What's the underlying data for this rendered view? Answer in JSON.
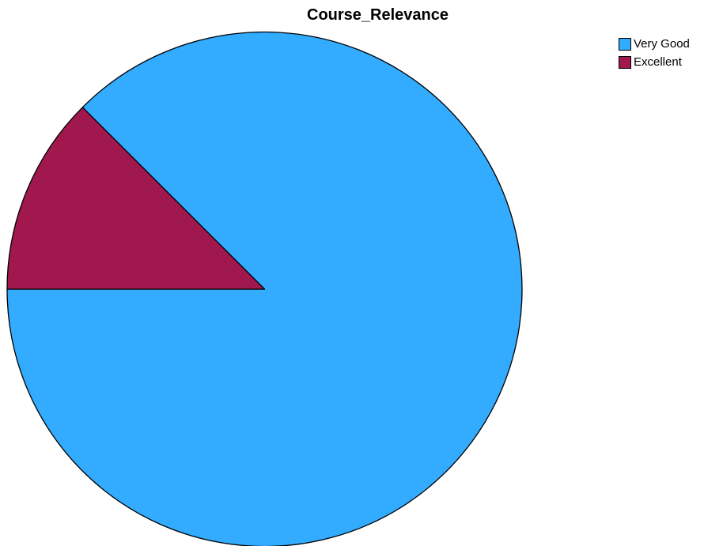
{
  "chart_data": {
    "type": "pie",
    "title": "Course_Relevance",
    "slices": [
      {
        "label": "Very Good",
        "value": 87.5,
        "color": "#33abff"
      },
      {
        "label": "Excellent",
        "value": 12.5,
        "color": "#a0184e"
      }
    ],
    "start_angle_deg": 315,
    "direction": "clockwise",
    "legend_position": "top-right",
    "outline_color": "#000000"
  }
}
